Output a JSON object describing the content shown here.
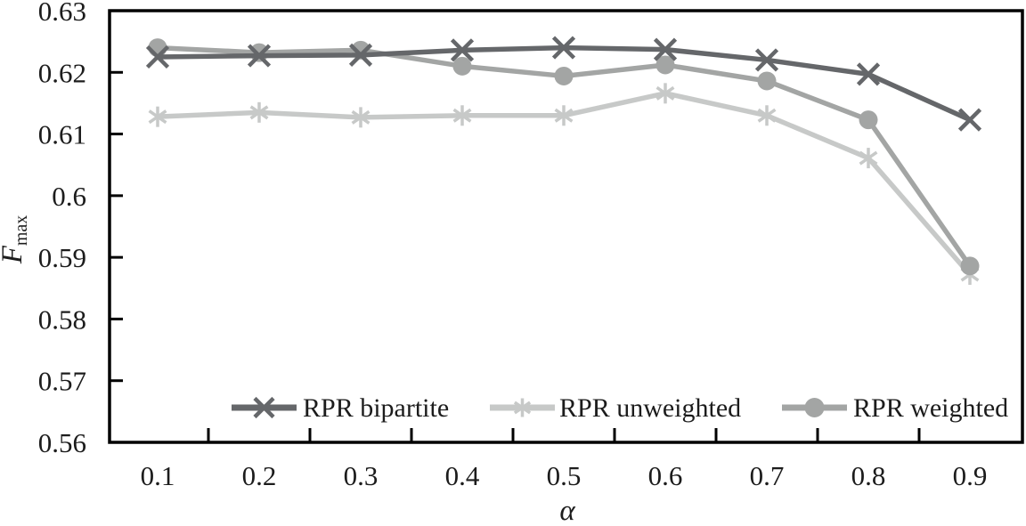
{
  "chart_data": {
    "type": "line",
    "title": "",
    "xlabel": "α",
    "ylabel_main": "F",
    "ylabel_sub": "max",
    "x": [
      0.1,
      0.2,
      0.3,
      0.4,
      0.5,
      0.6,
      0.7,
      0.8,
      0.9
    ],
    "xtick_labels": [
      "0.1",
      "0.2",
      "0.3",
      "0.4",
      "0.5",
      "0.6",
      "0.7",
      "0.8",
      "0.9"
    ],
    "ylim": [
      0.56,
      0.63
    ],
    "ytick_values": [
      0.63,
      0.62,
      0.61,
      0.6,
      0.59,
      0.58,
      0.57,
      0.56
    ],
    "ytick_labels": [
      "0.63",
      "0.62",
      "0.61",
      "0.6",
      "0.59",
      "0.58",
      "0.57",
      "0.56"
    ],
    "grid": false,
    "legend_position": "bottom-inside",
    "series": [
      {
        "name": "RPR bipartite",
        "marker": "cross",
        "color": "#65676a",
        "values": [
          0.6225,
          0.6227,
          0.6228,
          0.6236,
          0.624,
          0.6237,
          0.622,
          0.6197,
          0.6123
        ]
      },
      {
        "name": "RPR unweighted",
        "marker": "asterisk",
        "color": "#c7c9c8",
        "values": [
          0.6128,
          0.6135,
          0.6127,
          0.613,
          0.613,
          0.6166,
          0.613,
          0.6061,
          0.5872
        ]
      },
      {
        "name": "RPR weighted",
        "marker": "circle",
        "color": "#a3a5a4",
        "values": [
          0.624,
          0.6232,
          0.6236,
          0.621,
          0.6194,
          0.6212,
          0.6186,
          0.6123,
          0.5886
        ]
      }
    ]
  },
  "colors": {
    "background": "#ffffff",
    "axis": "#000000",
    "text": "#1c1c1c"
  }
}
